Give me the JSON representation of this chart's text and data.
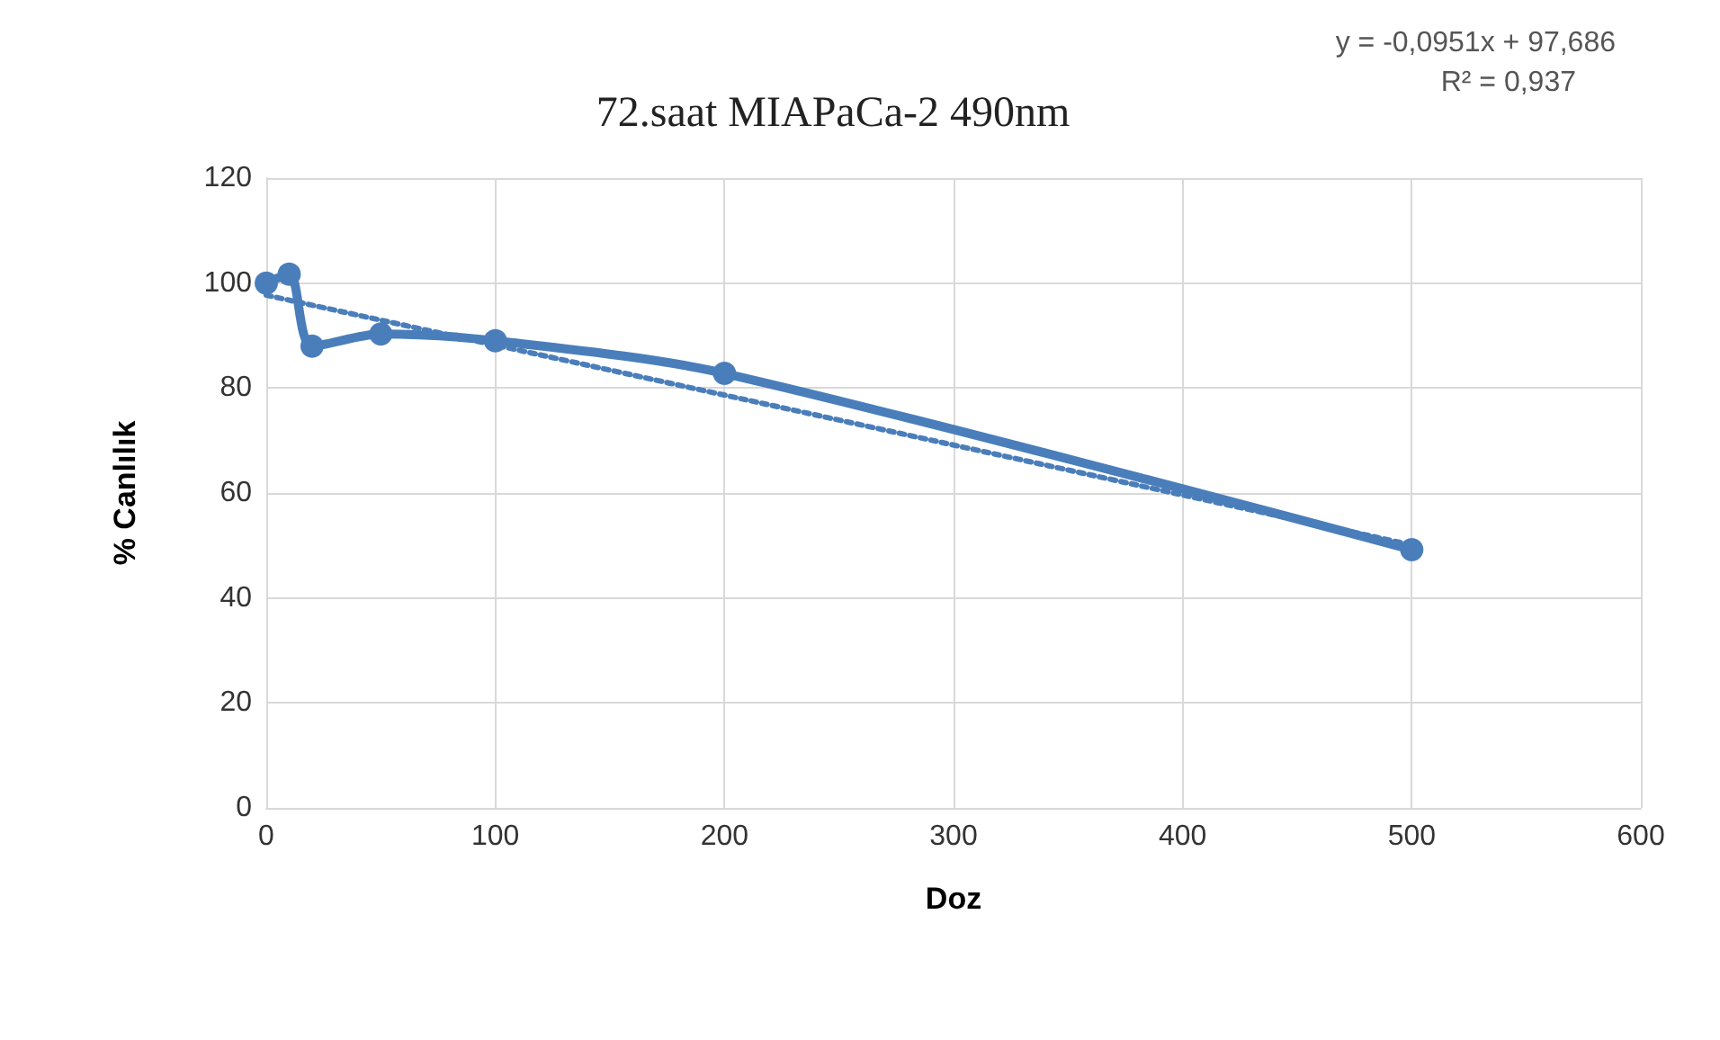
{
  "chart_data": {
    "type": "line",
    "title": "72.saat MIAPaCa-2 490nm",
    "xlabel": "Doz",
    "ylabel": "% Canlılık",
    "annotations": [
      "y = -0,0951x + 97,686",
      "R² = 0,937"
    ],
    "series": [
      {
        "color": "#4a7ebb",
        "x": [
          0,
          10,
          20,
          50,
          100,
          200,
          500
        ],
        "values": [
          100,
          101.7,
          88,
          90.3,
          89,
          82.8,
          49.2
        ],
        "marker": "circle",
        "line_style": "solid"
      },
      {
        "color": "#4a7ebb",
        "x": [
          0,
          500
        ],
        "values": [
          97.7,
          50.1
        ],
        "marker": "none",
        "line_style": "dotted"
      }
    ],
    "xlim": [
      0,
      600
    ],
    "xticks": [
      0,
      100,
      200,
      300,
      400,
      500,
      600
    ],
    "ylim": [
      0,
      120
    ],
    "yticks": [
      0,
      20,
      40,
      60,
      80,
      100,
      120
    ],
    "grid": true
  }
}
